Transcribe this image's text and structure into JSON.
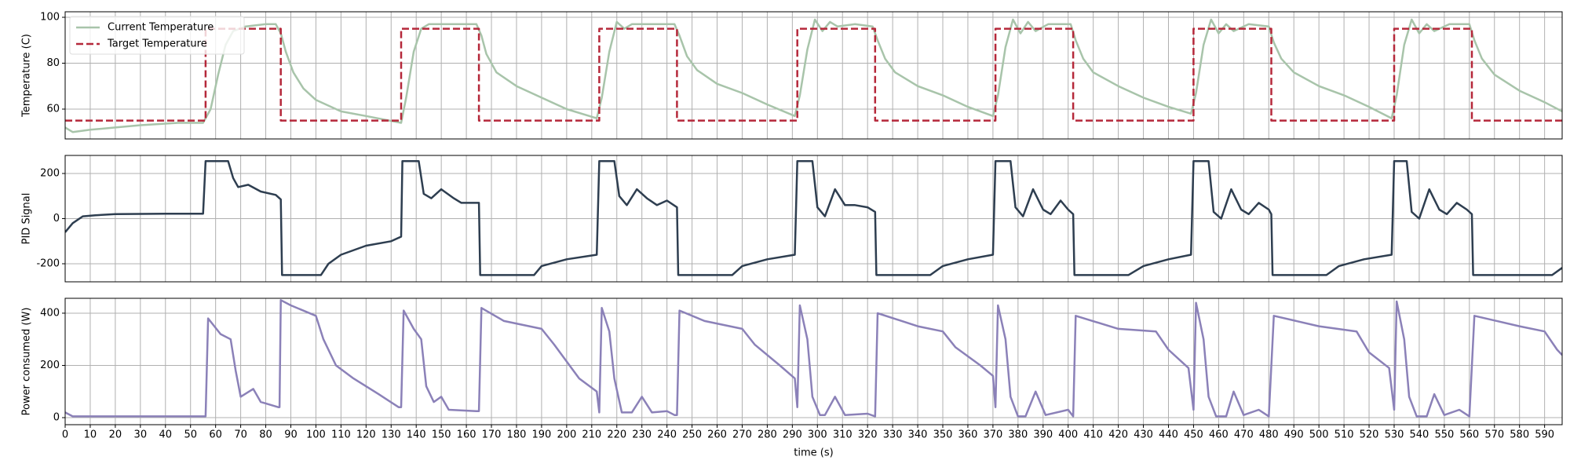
{
  "chart_data": [
    {
      "type": "line",
      "ylabel": "Temperature (C)",
      "xlim": [
        0,
        597
      ],
      "ylim": [
        47,
        102.4
      ],
      "yticks": [
        60,
        80,
        100
      ],
      "grid": true,
      "legend": "upper left",
      "series": [
        {
          "name": "Current Temperature",
          "color": "#a8c4aa",
          "linestyle": "solid",
          "x": [
            0,
            3,
            10,
            20,
            30,
            45,
            55,
            58,
            61,
            64,
            67,
            72,
            80,
            84,
            86,
            88,
            91,
            95,
            100,
            110,
            120,
            134,
            136,
            139,
            142,
            145,
            155,
            164,
            166,
            168,
            172,
            180,
            190,
            200,
            212,
            214,
            217,
            220,
            223,
            226,
            235,
            243,
            245,
            248,
            252,
            260,
            270,
            280,
            291,
            293,
            296,
            299,
            302,
            305,
            308,
            315,
            322,
            324,
            327,
            331,
            340,
            350,
            360,
            370,
            372,
            375,
            378,
            381,
            384,
            387,
            392,
            401,
            403,
            406,
            410,
            420,
            430,
            440,
            449,
            451,
            454,
            457,
            460,
            463,
            466,
            472,
            480,
            482,
            485,
            490,
            500,
            510,
            520,
            529,
            531,
            534,
            537,
            540,
            543,
            546,
            552,
            560,
            562,
            565,
            570,
            580,
            590,
            597
          ],
          "values": [
            52,
            50,
            51,
            52,
            53,
            54,
            54,
            60,
            75,
            88,
            94,
            96,
            97,
            97,
            93,
            85,
            76,
            69,
            64,
            59,
            57,
            54,
            65,
            85,
            95,
            97,
            97,
            97,
            92,
            84,
            76,
            70,
            65,
            60,
            56,
            65,
            85,
            98,
            95,
            97,
            97,
            97,
            92,
            83,
            77,
            71,
            67,
            62,
            57,
            66,
            86,
            99,
            94,
            98,
            96,
            97,
            96,
            90,
            82,
            76,
            70,
            66,
            61,
            57,
            66,
            87,
            99,
            93,
            98,
            94,
            97,
            97,
            90,
            82,
            76,
            70,
            65,
            61,
            58,
            67,
            88,
            99,
            93,
            97,
            94,
            97,
            96,
            89,
            82,
            76,
            70,
            66,
            61,
            56,
            66,
            88,
            99,
            93,
            97,
            94,
            97,
            97,
            90,
            82,
            75,
            68,
            63,
            59
          ]
        },
        {
          "name": "Target Temperature",
          "color": "#b5283a",
          "linestyle": "dashed",
          "x": [
            0,
            56,
            56,
            86,
            86,
            134,
            134,
            165,
            165,
            213,
            213,
            244,
            244,
            292,
            292,
            323,
            323,
            371,
            371,
            402,
            402,
            450,
            450,
            481,
            481,
            530,
            530,
            561,
            561,
            597
          ],
          "values": [
            55,
            55,
            95,
            95,
            55,
            55,
            95,
            95,
            55,
            55,
            95,
            95,
            55,
            55,
            95,
            95,
            55,
            55,
            95,
            95,
            55,
            55,
            95,
            95,
            55,
            55,
            95,
            95,
            55,
            55
          ]
        }
      ]
    },
    {
      "type": "line",
      "ylabel": "PID Signal",
      "xlim": [
        0,
        597
      ],
      "ylim": [
        -280,
        280
      ],
      "yticks": [
        -200,
        0,
        200
      ],
      "grid": true,
      "series": [
        {
          "color": "#2e3e50",
          "linestyle": "solid",
          "x": [
            0,
            3,
            7,
            12,
            20,
            40,
            55,
            56,
            65,
            67,
            69,
            73,
            78,
            84,
            86,
            86.5,
            102,
            105,
            110,
            120,
            130,
            134,
            134.5,
            141,
            143,
            146,
            150,
            155,
            158,
            165,
            165.5,
            187,
            190,
            200,
            212,
            213,
            219,
            221,
            224,
            228,
            232,
            236,
            240,
            244,
            244.5,
            266,
            270,
            280,
            291,
            292,
            298,
            300,
            303,
            307,
            311,
            315,
            320,
            323,
            323.5,
            345,
            350,
            360,
            370,
            371,
            377,
            379,
            382,
            386,
            390,
            393,
            397,
            400,
            402,
            402.5,
            424,
            430,
            440,
            449,
            450,
            456,
            458,
            461,
            465,
            469,
            472,
            476,
            480,
            481,
            481.5,
            503,
            508,
            518,
            529,
            530,
            535,
            537,
            540,
            544,
            548,
            551,
            555,
            559,
            561,
            561.5,
            593,
            597
          ],
          "values": [
            -60,
            -20,
            10,
            15,
            20,
            22,
            22,
            255,
            255,
            180,
            140,
            150,
            120,
            105,
            85,
            -250,
            -250,
            -200,
            -160,
            -120,
            -100,
            -80,
            255,
            255,
            110,
            90,
            130,
            90,
            70,
            70,
            -250,
            -250,
            -210,
            -180,
            -160,
            255,
            255,
            100,
            60,
            130,
            90,
            60,
            80,
            50,
            -250,
            -250,
            -210,
            -180,
            -160,
            255,
            255,
            50,
            10,
            130,
            60,
            60,
            50,
            30,
            -250,
            -250,
            -210,
            -180,
            -160,
            255,
            255,
            50,
            10,
            130,
            40,
            20,
            80,
            40,
            20,
            -250,
            -250,
            -210,
            -180,
            -160,
            255,
            255,
            30,
            0,
            130,
            40,
            20,
            70,
            40,
            20,
            -250,
            -250,
            -210,
            -180,
            -160,
            255,
            255,
            30,
            0,
            130,
            40,
            20,
            70,
            40,
            20,
            -250,
            -250,
            -218
          ]
        }
      ]
    },
    {
      "type": "line",
      "ylabel": "Power consumed (W)",
      "xlabel": "time (s)",
      "xlim": [
        0,
        597
      ],
      "ylim": [
        -27,
        457
      ],
      "yticks": [
        0,
        200,
        400
      ],
      "xticks": [
        0,
        10,
        20,
        30,
        40,
        50,
        60,
        70,
        80,
        90,
        100,
        110,
        120,
        130,
        140,
        150,
        160,
        170,
        180,
        190,
        200,
        210,
        220,
        230,
        240,
        250,
        260,
        270,
        280,
        290,
        300,
        310,
        320,
        330,
        340,
        350,
        360,
        370,
        380,
        390,
        400,
        410,
        420,
        430,
        440,
        450,
        460,
        470,
        480,
        490,
        500,
        510,
        520,
        530,
        540,
        550,
        560,
        570,
        580,
        590
      ],
      "grid": true,
      "series": [
        {
          "color": "#8b81b8",
          "linestyle": "solid",
          "x": [
            0,
            3,
            20,
            55,
            56,
            57,
            62,
            66,
            68,
            70,
            75,
            78,
            85,
            85.5,
            86,
            90,
            100,
            103,
            108,
            115,
            125,
            133,
            134,
            135,
            139,
            142,
            144,
            147,
            150,
            153,
            164,
            165,
            166,
            175,
            190,
            195,
            205,
            212,
            213,
            214,
            217,
            219,
            222,
            226,
            230,
            234,
            240,
            243,
            244,
            245,
            255,
            270,
            275,
            285,
            291,
            292,
            293,
            296,
            298,
            301,
            303,
            307,
            311,
            320,
            323,
            324,
            340,
            350,
            355,
            365,
            370,
            371,
            372,
            375,
            377,
            380,
            383,
            387,
            391,
            400,
            402,
            403,
            420,
            435,
            440,
            448,
            450,
            451,
            454,
            456,
            459,
            463,
            466,
            470,
            476,
            480,
            482,
            500,
            515,
            520,
            528,
            530,
            531,
            534,
            536,
            539,
            543,
            546,
            550,
            556,
            560,
            562,
            580,
            590,
            595,
            597
          ],
          "values": [
            20,
            5,
            5,
            5,
            5,
            380,
            320,
            300,
            180,
            80,
            110,
            60,
            40,
            40,
            450,
            430,
            390,
            300,
            200,
            150,
            90,
            40,
            40,
            410,
            340,
            300,
            120,
            60,
            80,
            30,
            25,
            25,
            420,
            370,
            340,
            280,
            150,
            100,
            20,
            420,
            330,
            150,
            20,
            20,
            80,
            20,
            25,
            10,
            10,
            410,
            370,
            340,
            280,
            200,
            150,
            40,
            430,
            300,
            80,
            10,
            10,
            80,
            10,
            15,
            5,
            400,
            350,
            330,
            270,
            200,
            160,
            40,
            430,
            300,
            80,
            5,
            5,
            100,
            10,
            30,
            5,
            390,
            340,
            330,
            260,
            190,
            30,
            440,
            300,
            80,
            5,
            5,
            100,
            10,
            30,
            5,
            390,
            350,
            330,
            250,
            190,
            30,
            445,
            300,
            80,
            5,
            5,
            90,
            10,
            30,
            5,
            390,
            350,
            330,
            260,
            240
          ]
        }
      ]
    }
  ]
}
